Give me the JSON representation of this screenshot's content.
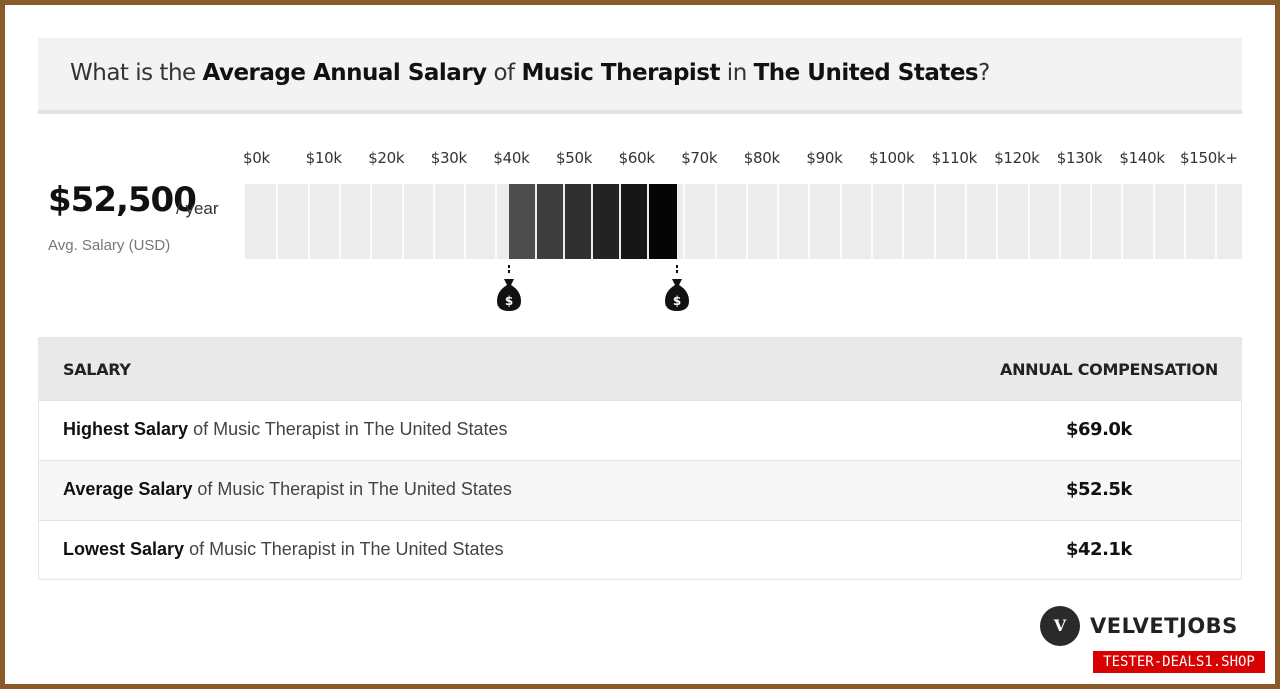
{
  "question": {
    "prefix": "What is the ",
    "bold1": "Average Annual Salary",
    "mid1": " of ",
    "bold2": "Music Therapist",
    "mid2": " in ",
    "bold3": "The United States",
    "suffix": "?"
  },
  "summary": {
    "avg_value": "$52,500",
    "avg_unit": "/ year",
    "avg_label": "Avg. Salary (USD)"
  },
  "chart_data": {
    "type": "bar",
    "tick_labels": [
      "$0k",
      "$10k",
      "$20k",
      "$30k",
      "$40k",
      "$50k",
      "$60k",
      "$70k",
      "$80k",
      "$90k",
      "$100k",
      "$110k",
      "$120k",
      "$130k",
      "$140k",
      "$150k+"
    ],
    "range_low": 42100,
    "range_high": 69000,
    "average": 52500,
    "shade_colors": [
      "#4d4d4d",
      "#3d3d3d",
      "#303030",
      "#232323",
      "#161616",
      "#050505"
    ],
    "track_color": "#ececec"
  },
  "table": {
    "col_salary": "SALARY",
    "col_comp": "ANNUAL COMPENSATION",
    "rows": [
      {
        "bold": "Highest Salary",
        "rest": " of Music Therapist in The United States",
        "value": "$69.0k"
      },
      {
        "bold": "Average Salary",
        "rest": " of Music Therapist in The United States",
        "value": "$52.5k"
      },
      {
        "bold": "Lowest Salary",
        "rest": " of Music Therapist in The United States",
        "value": "$42.1k"
      }
    ]
  },
  "brand": {
    "logo_letter": "V",
    "name": "VELVETJOBS"
  },
  "watermark": "TESTER-DEALS1.SHOP"
}
